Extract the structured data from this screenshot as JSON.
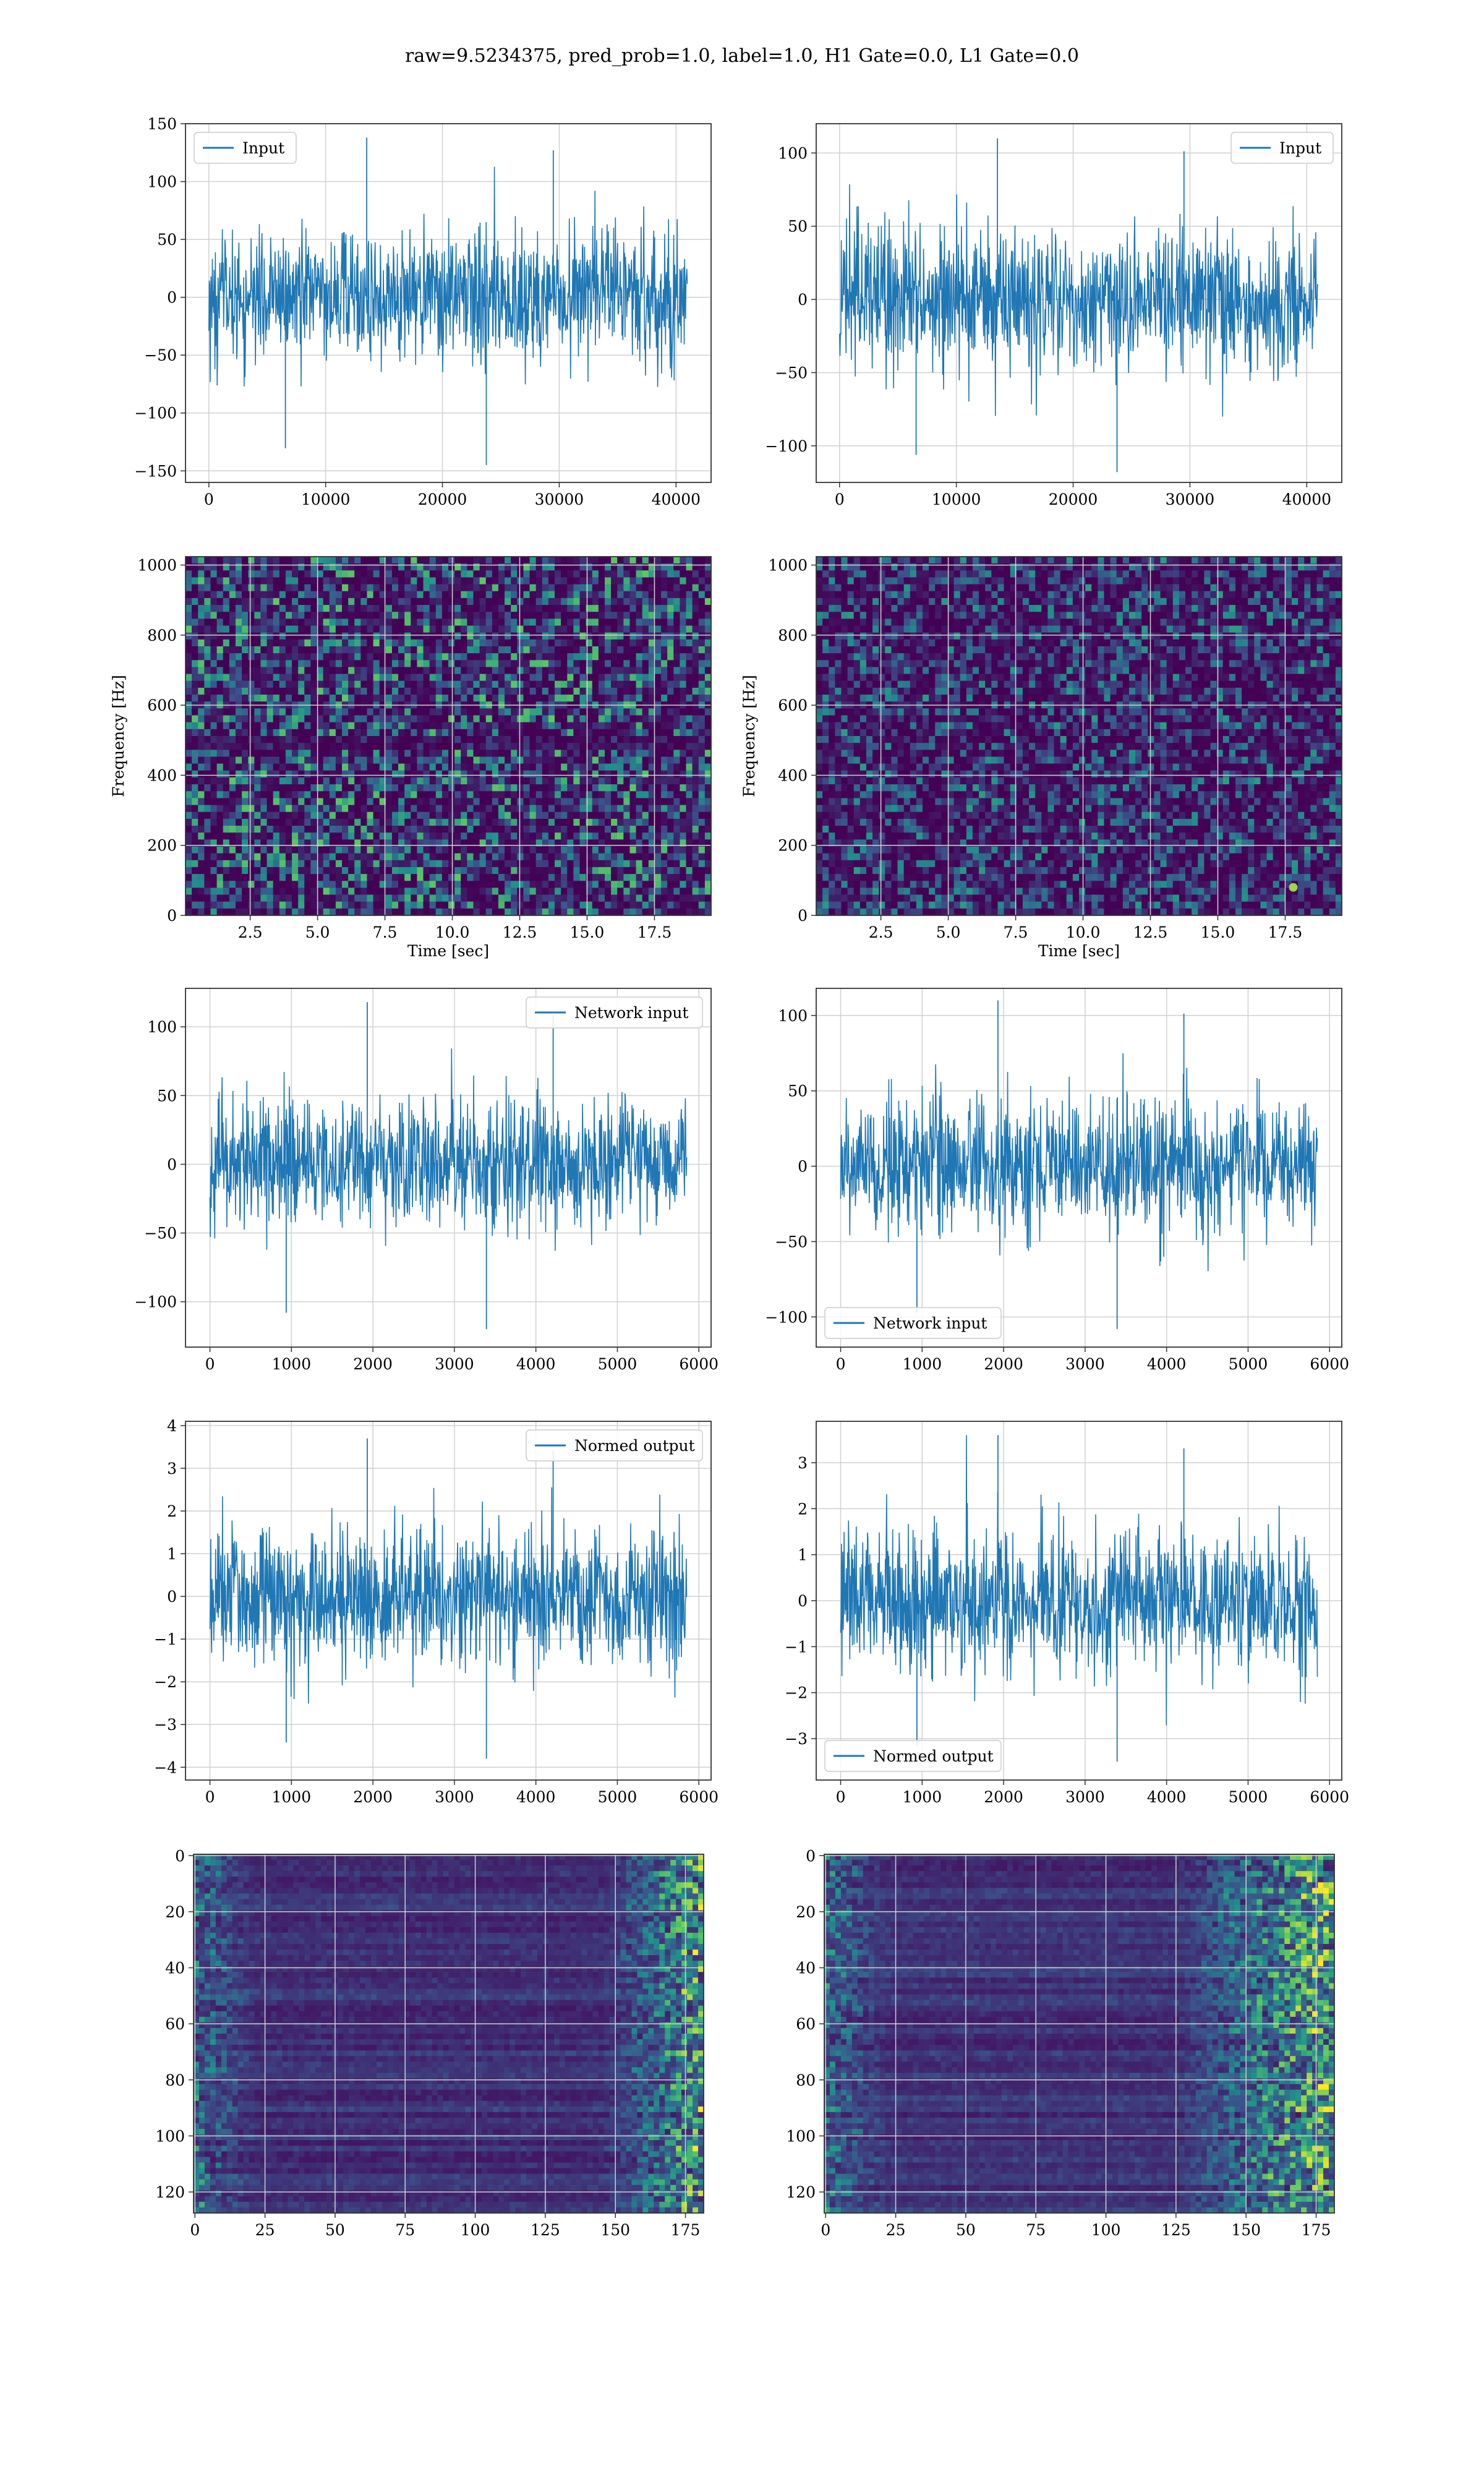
{
  "figure": {
    "title": "raw=9.5234375, pred_prob=1.0, label=1.0, H1 Gate=0.0, L1 Gate=0.0"
  },
  "colors": {
    "line": "#1f77b4",
    "grid": "#d0d0d0",
    "axes": "#333333",
    "viridis": [
      "#440154",
      "#3b528b",
      "#21918c",
      "#5ec962",
      "#fde725"
    ]
  },
  "chart_data": [
    {
      "type": "line",
      "panel": "row1-left",
      "legend": [
        "Input"
      ],
      "legend_loc": "upper left",
      "xlim": [
        -2000,
        43000
      ],
      "ylim": [
        -160,
        150
      ],
      "xticks": [
        0,
        10000,
        20000,
        30000,
        40000
      ],
      "xticklabels": [
        "0",
        "10000",
        "20000",
        "30000",
        "40000"
      ],
      "yticks": [
        -150,
        -100,
        -50,
        0,
        50,
        100,
        150
      ],
      "yticklabels": [
        "−150",
        "−100",
        "−50",
        "0",
        "50",
        "100",
        "150"
      ],
      "series": [
        {
          "name": "Input",
          "x_range": [
            0,
            40960
          ],
          "noise_std": 28,
          "envelope": [
            -145,
            138
          ]
        }
      ]
    },
    {
      "type": "line",
      "panel": "row1-right",
      "legend": [
        "Input"
      ],
      "legend_loc": "upper right",
      "xlim": [
        -2000,
        43000
      ],
      "ylim": [
        -125,
        120
      ],
      "xticks": [
        0,
        10000,
        20000,
        30000,
        40000
      ],
      "xticklabels": [
        "0",
        "10000",
        "20000",
        "30000",
        "40000"
      ],
      "yticks": [
        -100,
        -50,
        0,
        50,
        100
      ],
      "yticklabels": [
        "−100",
        "−50",
        "0",
        "50",
        "100"
      ],
      "series": [
        {
          "name": "Input",
          "x_range": [
            0,
            40960
          ],
          "noise_std": 24,
          "envelope": [
            -118,
            110
          ]
        }
      ]
    },
    {
      "type": "heatmap",
      "panel": "row2-left",
      "xlabel": "Time [sec]",
      "ylabel": "Frequency [Hz]",
      "xlim": [
        0.1,
        19.6
      ],
      "ylim": [
        0,
        1024
      ],
      "xticks": [
        2.5,
        5.0,
        7.5,
        10.0,
        12.5,
        15.0,
        17.5
      ],
      "xticklabels": [
        "2.5",
        "5.0",
        "7.5",
        "10.0",
        "12.5",
        "15.0",
        "17.5"
      ],
      "yticks": [
        0,
        200,
        400,
        600,
        800,
        1000
      ],
      "yticklabels": [
        "0",
        "200",
        "400",
        "600",
        "800",
        "1000"
      ],
      "colormap": "viridis",
      "feature": "dark band near 500 Hz"
    },
    {
      "type": "heatmap",
      "panel": "row2-right",
      "xlabel": "Time [sec]",
      "ylabel": "Frequency [Hz]",
      "xlim": [
        0.1,
        19.6
      ],
      "ylim": [
        0,
        1024
      ],
      "xticks": [
        2.5,
        5.0,
        7.5,
        10.0,
        12.5,
        15.0,
        17.5
      ],
      "xticklabels": [
        "2.5",
        "5.0",
        "7.5",
        "10.0",
        "12.5",
        "15.0",
        "17.5"
      ],
      "yticks": [
        0,
        200,
        400,
        600,
        800,
        1000
      ],
      "yticklabels": [
        "0",
        "200",
        "400",
        "600",
        "800",
        "1000"
      ],
      "colormap": "viridis",
      "feature": "bright spot near t=17.8 s, f=80 Hz"
    },
    {
      "type": "line",
      "panel": "row3-left",
      "legend": [
        "Network input"
      ],
      "legend_loc": "upper right",
      "xlim": [
        -300,
        6150
      ],
      "ylim": [
        -133,
        128
      ],
      "xticks": [
        0,
        1000,
        2000,
        3000,
        4000,
        5000,
        6000
      ],
      "xticklabels": [
        "0",
        "1000",
        "2000",
        "3000",
        "4000",
        "5000",
        "6000"
      ],
      "yticks": [
        -100,
        -50,
        0,
        50,
        100
      ],
      "yticklabels": [
        "−100",
        "−50",
        "0",
        "50",
        "100"
      ],
      "series": [
        {
          "name": "Network input",
          "x_range": [
            0,
            5850
          ],
          "noise_std": 23,
          "envelope": [
            -120,
            118
          ]
        }
      ]
    },
    {
      "type": "line",
      "panel": "row3-right",
      "legend": [
        "Network input"
      ],
      "legend_loc": "lower left",
      "xlim": [
        -300,
        6150
      ],
      "ylim": [
        -120,
        118
      ],
      "xticks": [
        0,
        1000,
        2000,
        3000,
        4000,
        5000,
        6000
      ],
      "xticklabels": [
        "0",
        "1000",
        "2000",
        "3000",
        "4000",
        "5000",
        "6000"
      ],
      "yticks": [
        -100,
        -50,
        0,
        50,
        100
      ],
      "yticklabels": [
        "−100",
        "−50",
        "0",
        "50",
        "100"
      ],
      "series": [
        {
          "name": "Network input",
          "x_range": [
            0,
            5850
          ],
          "noise_std": 23,
          "envelope": [
            -108,
            110
          ]
        }
      ]
    },
    {
      "type": "line",
      "panel": "row4-left",
      "legend": [
        "Normed output"
      ],
      "legend_loc": "upper right",
      "xlim": [
        -300,
        6150
      ],
      "ylim": [
        -4.3,
        4.1
      ],
      "xticks": [
        0,
        1000,
        2000,
        3000,
        4000,
        5000,
        6000
      ],
      "xticklabels": [
        "0",
        "1000",
        "2000",
        "3000",
        "4000",
        "5000",
        "6000"
      ],
      "yticks": [
        -4,
        -3,
        -2,
        -1,
        0,
        1,
        2,
        3,
        4
      ],
      "yticklabels": [
        "−4",
        "−3",
        "−2",
        "−1",
        "0",
        "1",
        "2",
        "3",
        "4"
      ],
      "series": [
        {
          "name": "Normed output",
          "x_range": [
            0,
            5850
          ],
          "noise_std": 0.8,
          "envelope": [
            -3.8,
            3.7
          ]
        }
      ]
    },
    {
      "type": "line",
      "panel": "row4-right",
      "legend": [
        "Normed output"
      ],
      "legend_loc": "lower left",
      "xlim": [
        -300,
        6150
      ],
      "ylim": [
        -3.9,
        3.9
      ],
      "xticks": [
        0,
        1000,
        2000,
        3000,
        4000,
        5000,
        6000
      ],
      "xticklabels": [
        "0",
        "1000",
        "2000",
        "3000",
        "4000",
        "5000",
        "6000"
      ],
      "yticks": [
        -3,
        -2,
        -1,
        0,
        1,
        2,
        3
      ],
      "yticklabels": [
        "−3",
        "−2",
        "−1",
        "0",
        "1",
        "2",
        "3"
      ],
      "series": [
        {
          "name": "Normed output",
          "x_range": [
            0,
            5850
          ],
          "noise_std": 0.8,
          "envelope": [
            -3.5,
            3.6
          ]
        }
      ]
    },
    {
      "type": "heatmap",
      "panel": "row5-left",
      "xlim": [
        -0.5,
        181.5
      ],
      "ylim": [
        127.5,
        -0.5
      ],
      "xticks": [
        0,
        25,
        50,
        75,
        100,
        125,
        150,
        175
      ],
      "xticklabels": [
        "0",
        "25",
        "50",
        "75",
        "100",
        "125",
        "150",
        "175"
      ],
      "yticks": [
        0,
        20,
        40,
        60,
        80,
        100,
        120
      ],
      "yticklabels": [
        "0",
        "20",
        "40",
        "60",
        "80",
        "100",
        "120"
      ],
      "colormap": "viridis",
      "feature": "horizontal streaks, bright near columns 160-180"
    },
    {
      "type": "heatmap",
      "panel": "row5-right",
      "xlim": [
        -0.5,
        181.5
      ],
      "ylim": [
        127.5,
        -0.5
      ],
      "xticks": [
        0,
        25,
        50,
        75,
        100,
        125,
        150,
        175
      ],
      "xticklabels": [
        "0",
        "25",
        "50",
        "75",
        "100",
        "125",
        "150",
        "175"
      ],
      "yticks": [
        0,
        20,
        40,
        60,
        80,
        100,
        120
      ],
      "yticklabels": [
        "0",
        "20",
        "40",
        "60",
        "80",
        "100",
        "120"
      ],
      "colormap": "viridis",
      "feature": "horizontal streaks, bright near columns 130-175"
    }
  ]
}
